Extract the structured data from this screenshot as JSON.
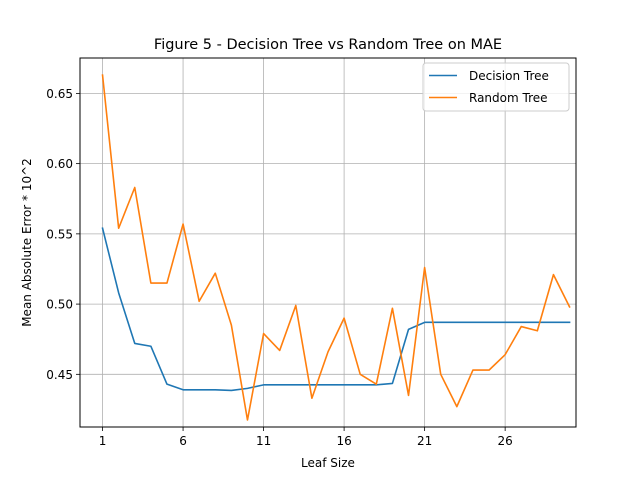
{
  "chart_data": {
    "type": "line",
    "title": "Figure 5 - Decision Tree vs Random Tree on MAE",
    "xlabel": "Leaf Size",
    "ylabel": "Mean Absolute Error * 10^2",
    "xlim": [
      -0.4,
      30.4
    ],
    "ylim": [
      0.4125,
      0.6752
    ],
    "xticks": [
      1,
      6,
      11,
      16,
      21,
      26
    ],
    "yticks": [
      0.45,
      0.5,
      0.55,
      0.6,
      0.65
    ],
    "ytick_labels": [
      "0.45",
      "0.50",
      "0.55",
      "0.60",
      "0.65"
    ],
    "grid": true,
    "legend_position": "top-right",
    "x": [
      1,
      2,
      3,
      4,
      5,
      6,
      7,
      8,
      9,
      10,
      11,
      12,
      13,
      14,
      15,
      16,
      17,
      18,
      19,
      20,
      21,
      22,
      23,
      24,
      25,
      26,
      27,
      28,
      29,
      30
    ],
    "series": [
      {
        "name": "Decision Tree",
        "color": "#1f77b4",
        "values": [
          0.554,
          0.508,
          0.472,
          0.47,
          0.443,
          0.439,
          0.439,
          0.439,
          0.4385,
          0.44,
          0.4425,
          0.4425,
          0.4425,
          0.4425,
          0.4425,
          0.4425,
          0.4425,
          0.4425,
          0.4435,
          0.482,
          0.487,
          0.487,
          0.487,
          0.487,
          0.487,
          0.487,
          0.487,
          0.487,
          0.487,
          0.487
        ]
      },
      {
        "name": "Random Tree",
        "color": "#ff7f0e",
        "values": [
          0.663,
          0.554,
          0.583,
          0.515,
          0.515,
          0.557,
          0.502,
          0.522,
          0.485,
          0.4175,
          0.479,
          0.467,
          0.499,
          0.433,
          0.466,
          0.49,
          0.45,
          0.443,
          0.497,
          0.435,
          0.526,
          0.45,
          0.427,
          0.453,
          0.453,
          0.464,
          0.484,
          0.481,
          0.521,
          0.498
        ]
      }
    ]
  }
}
